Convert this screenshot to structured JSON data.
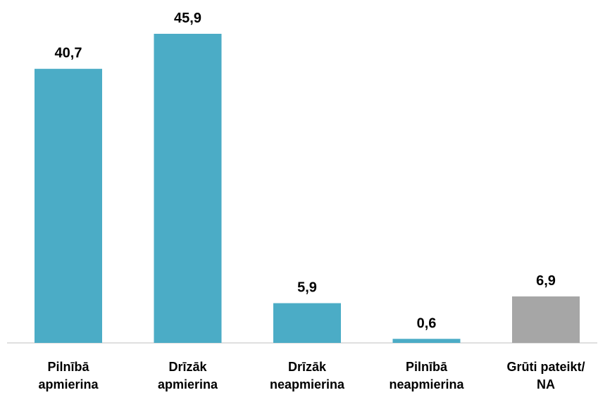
{
  "chart_data": {
    "type": "bar",
    "title": "",
    "xlabel": "",
    "ylabel": "",
    "categories": [
      [
        "Pilnībā",
        "apmierina"
      ],
      [
        "Drīzāk",
        "apmierina"
      ],
      [
        "Drīzāk",
        "neapmierina"
      ],
      [
        "Pilnībā",
        "neapmierina"
      ],
      [
        "Grūti pateikt/",
        "NA"
      ]
    ],
    "values": [
      40.7,
      45.9,
      5.9,
      0.6,
      6.9
    ],
    "value_labels": [
      "40,7",
      "45,9",
      "5,9",
      "0,6",
      "6,9"
    ],
    "colors": [
      "#4bacc6",
      "#4bacc6",
      "#4bacc6",
      "#4bacc6",
      "#a6a6a6"
    ],
    "ylim": [
      0,
      45.9
    ],
    "grid": false,
    "legend": "none"
  }
}
